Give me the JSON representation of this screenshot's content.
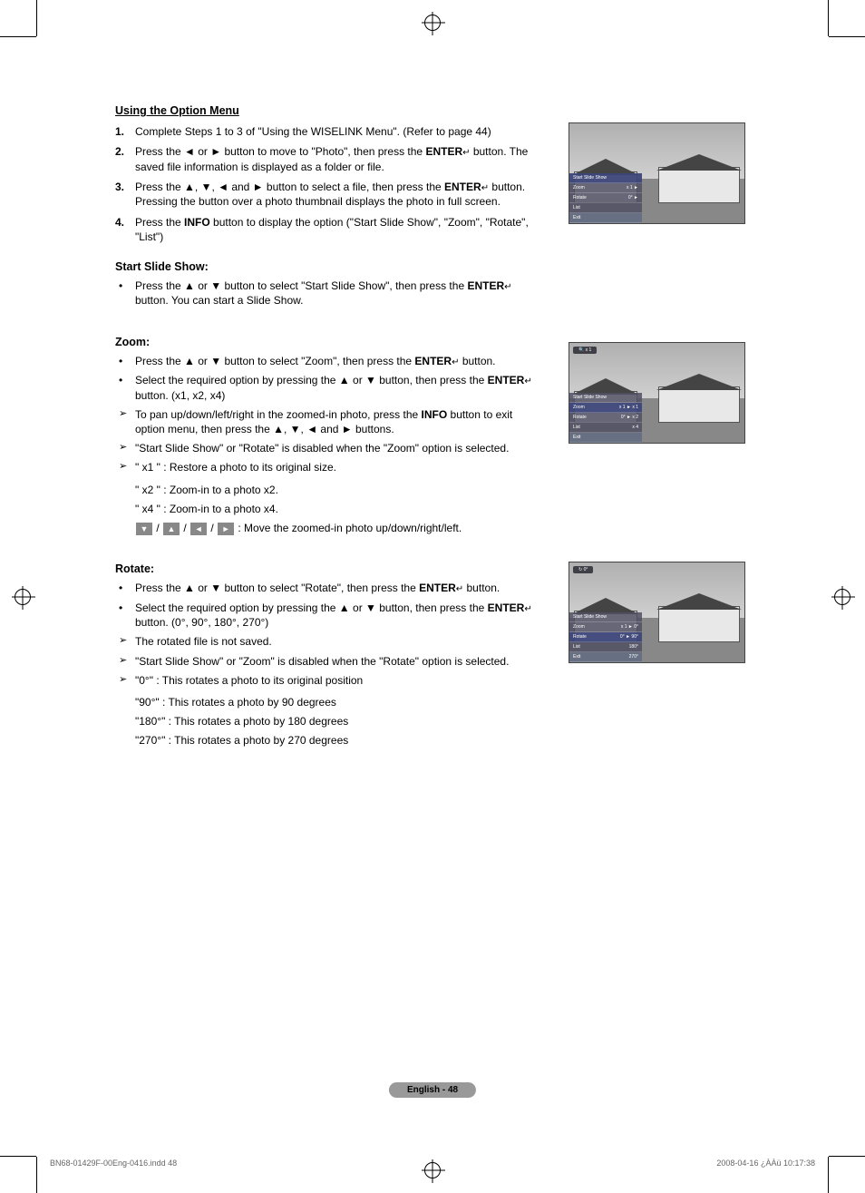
{
  "section_title": "Using the Option Menu",
  "steps": [
    {
      "num": "1.",
      "text": "Complete Steps 1 to 3 of \"Using the WISELINK Menu\". (Refer to page 44)"
    },
    {
      "num": "2.",
      "text_parts": [
        "Press the ◄ or ► button to move to \"Photo\", then press the ",
        "ENTER",
        " button. The saved file information is displayed as a folder or file."
      ]
    },
    {
      "num": "3.",
      "text_parts": [
        "Press the ▲, ▼, ◄ and ► button to select a file, then press the ",
        "ENTER",
        " button. Pressing the button over a photo thumbnail displays the photo in full screen."
      ]
    },
    {
      "num": "4.",
      "text_parts": [
        "Press the ",
        "INFO",
        " button to display the option (\"Start Slide Show\", \"Zoom\", \"Rotate\", \"List\")"
      ]
    }
  ],
  "slideshow": {
    "title": "Start Slide Show:",
    "bullet_parts": [
      "Press the ▲ or ▼ button to select \"Start Slide Show\", then press the ",
      "ENTER",
      " button. You can start a Slide Show."
    ]
  },
  "zoom": {
    "title": "Zoom:",
    "bullets": [
      {
        "type": "dot",
        "parts": [
          "Press the ▲ or ▼ button to select \"Zoom\", then press the ",
          "ENTER",
          " button."
        ]
      },
      {
        "type": "dot",
        "parts": [
          "Select the required option by pressing the ▲ or ▼ button, then press the ",
          "ENTER",
          " button. (x1, x2, x4)"
        ]
      },
      {
        "type": "arrow",
        "parts": [
          "To pan up/down/left/right in the zoomed-in photo, press the ",
          "INFO",
          " button to exit option menu, then press the ▲, ▼, ◄ and ► buttons."
        ]
      },
      {
        "type": "arrow",
        "text": "\"Start Slide Show\" or \"Rotate\" is disabled when the \"Zoom\" option is selected."
      },
      {
        "type": "arrow",
        "text": "\" x1 \" : Restore a photo to its original size."
      }
    ],
    "sub_lines": [
      "\" x2 \" : Zoom-in to a photo x2.",
      "\" x4 \" : Zoom-in to a photo x4."
    ],
    "move_suffix": " : Move the zoomed-in photo up/down/right/left."
  },
  "rotate": {
    "title": "Rotate:",
    "bullets": [
      {
        "type": "dot",
        "parts": [
          "Press the ▲ or ▼ button to select \"Rotate\", then press the ",
          "ENTER",
          " button."
        ]
      },
      {
        "type": "dot",
        "parts": [
          "Select the required option by pressing the ▲ or ▼ button, then press the ",
          "ENTER",
          " button. (0°, 90°, 180°, 270°)"
        ]
      },
      {
        "type": "arrow",
        "text": "The rotated file is not saved."
      },
      {
        "type": "arrow",
        "text": "\"Start Slide Show\" or \"Zoom\" is disabled when the \"Rotate\" option is selected."
      },
      {
        "type": "arrow",
        "text": "\"0°\" : This rotates a photo to its original position"
      }
    ],
    "sub_lines": [
      "\"90°\" : This rotates a photo by 90 degrees",
      "\"180°\" : This rotates a photo by 180 degrees",
      "\"270°\" : This rotates a photo by 270 degrees"
    ]
  },
  "screenshots": {
    "s1_menu": [
      {
        "label": "Start Slide Show",
        "val": "",
        "hl": true
      },
      {
        "label": "Zoom",
        "val": "x 1 ►"
      },
      {
        "label": "Rotate",
        "val": "0° ►"
      },
      {
        "label": "List",
        "val": ""
      },
      {
        "label": "Exit",
        "val": "",
        "exit": true
      }
    ],
    "s2_badge": "x 1",
    "s2_menu": [
      {
        "label": "Start Slide Show",
        "val": ""
      },
      {
        "label": "Zoom",
        "val": "x 1 ►   x 1",
        "hl": true
      },
      {
        "label": "Rotate",
        "val": "0° ►   x 2"
      },
      {
        "label": "List",
        "val": "x 4"
      },
      {
        "label": "Exit",
        "val": "",
        "exit": true
      }
    ],
    "s3_badge": "0°",
    "s3_menu": [
      {
        "label": "Start Slide Show",
        "val": ""
      },
      {
        "label": "Zoom",
        "val": "x 1 ►   0°"
      },
      {
        "label": "Rotate",
        "val": "0° ►   90°",
        "hl": true
      },
      {
        "label": "List",
        "val": "180°"
      },
      {
        "label": "Exit",
        "val": "270°",
        "exit": true
      }
    ]
  },
  "page_num": "English - 48",
  "footer_left": "BN68-01429F-00Eng-0416.indd   48",
  "footer_right": "2008-04-16   ¿ÀÀü 10:17:38",
  "dir_keys": [
    "▼",
    "▲",
    "◄",
    "►"
  ]
}
